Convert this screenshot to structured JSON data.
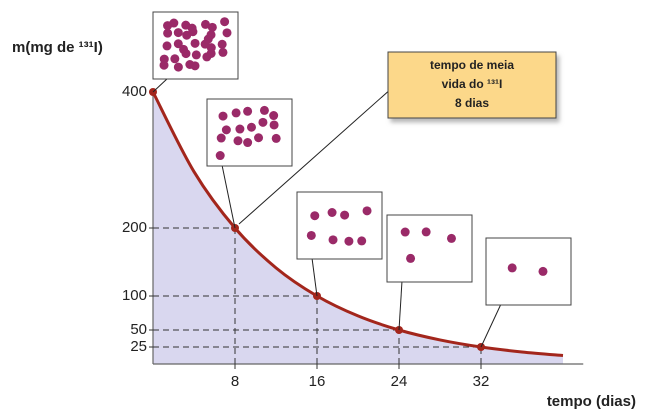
{
  "chart_data": {
    "type": "line",
    "y_label": "m(mg de ¹³¹I)",
    "x_label": "tempo (dias)",
    "annotation": [
      "tempo de meia",
      "vida do ¹³¹I",
      "8 dias"
    ],
    "x": [
      0,
      4,
      8,
      12,
      16,
      20,
      24,
      28,
      32,
      36,
      40
    ],
    "series": [
      {
        "color": "#a3261c",
        "values": [
          400,
          282.8,
          200,
          141.4,
          100,
          70.7,
          50,
          35.4,
          25,
          17.7,
          12.5
        ]
      }
    ],
    "fill_color": "#d9d7ef",
    "xlim": [
      0,
      41
    ],
    "ylim": [
      0,
      400
    ],
    "xticks": [
      8,
      16,
      24,
      32
    ],
    "yticks": [
      25,
      50,
      100,
      200,
      400
    ]
  }
}
